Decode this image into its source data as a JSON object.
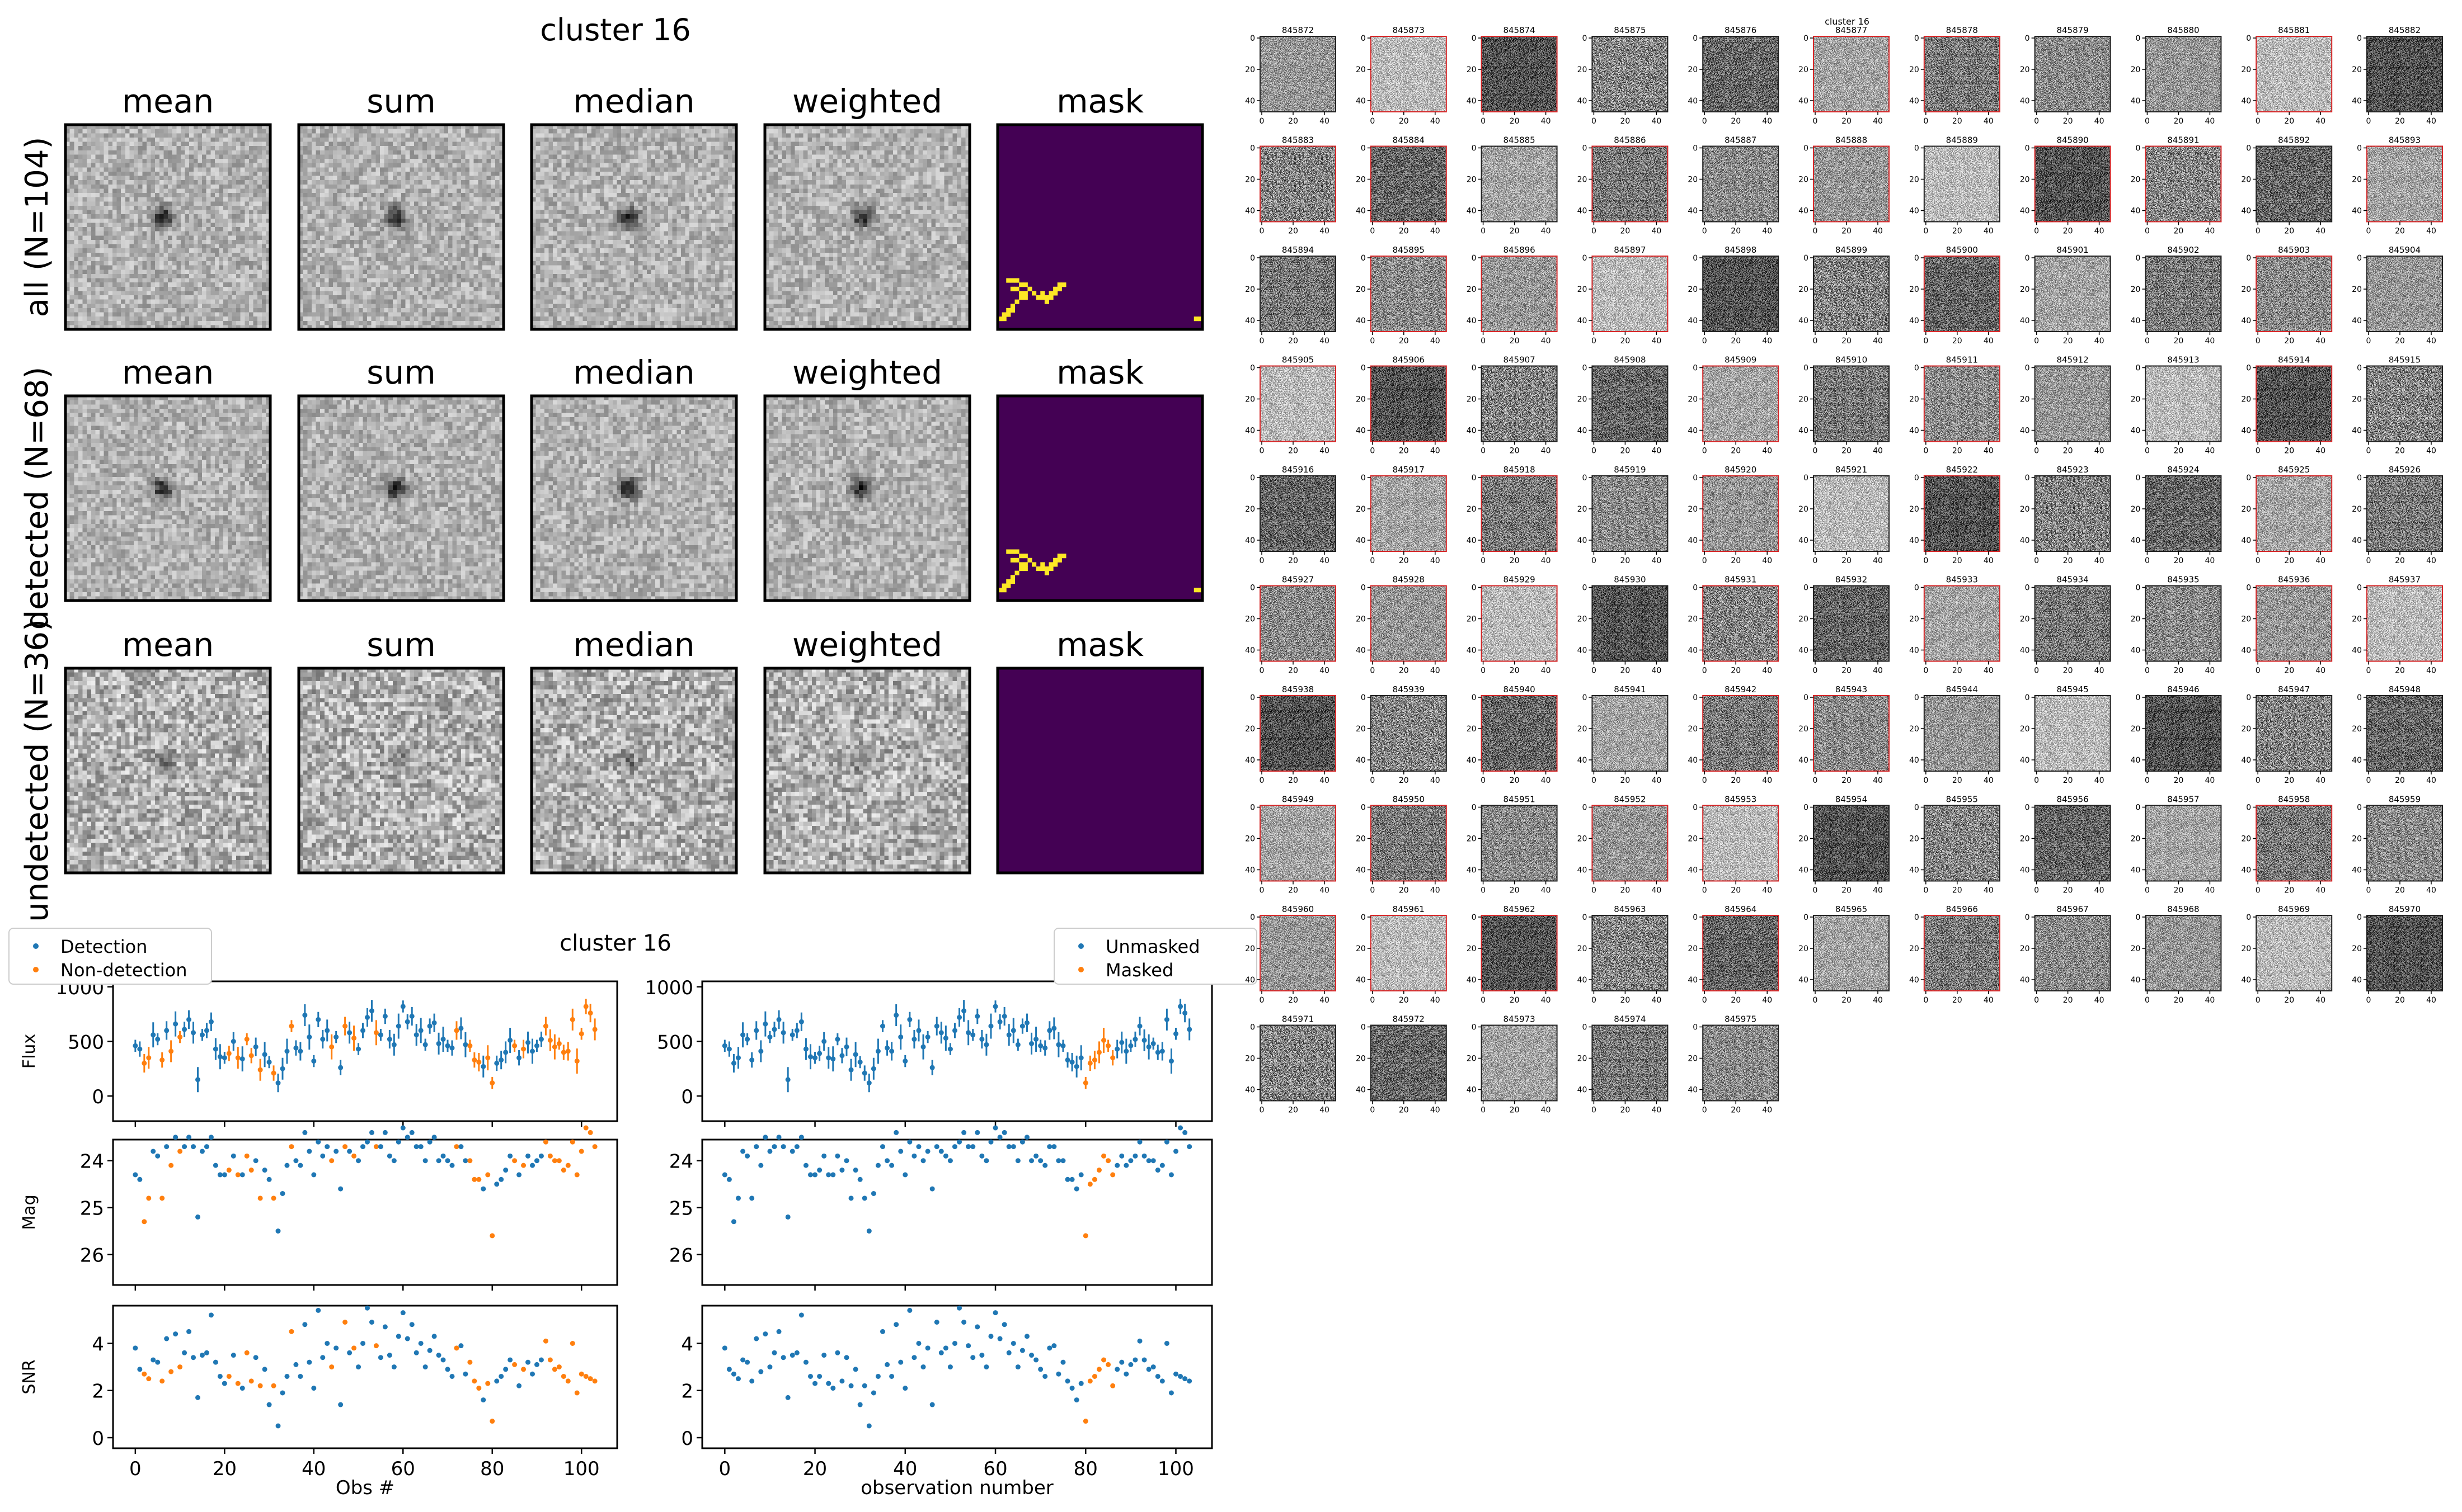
{
  "stack_figure": {
    "title": "cluster 16",
    "column_titles": [
      "mean",
      "sum",
      "median",
      "weighted",
      "mask"
    ],
    "row_labels": [
      "all (N=104)",
      "detected (N=68)",
      "undetected (N=36)"
    ],
    "colors": {
      "mask_background": "#440154",
      "mask_foreground": "#fde725"
    }
  },
  "lightcurve_figure": {
    "title": "cluster 16",
    "left_legend": [
      "Detection",
      "Non-detection"
    ],
    "right_legend": [
      "Unmasked",
      "Masked"
    ],
    "colors": {
      "blue": "#1f77b4",
      "orange": "#ff7f0e"
    },
    "panels": [
      {
        "ylabel": "Flux",
        "yticks": [
          "0",
          "500",
          "1000"
        ],
        "yrange": [
          -230,
          1050
        ]
      },
      {
        "ylabel": "Mag",
        "yticks": [
          "24",
          "25",
          "26"
        ],
        "yrange": [
          26.65,
          23.55
        ]
      },
      {
        "ylabel": "SNR",
        "yticks": [
          "0",
          "2",
          "4"
        ],
        "yrange": [
          -0.45,
          5.6
        ]
      }
    ],
    "xticks": [
      "0",
      "20",
      "40",
      "60",
      "80",
      "100"
    ],
    "xrange": [
      -5,
      108
    ],
    "left_xlabel": "Obs #",
    "right_xlabel": "observation number"
  },
  "cutout_grid": {
    "title": "cluster 16",
    "tile_yticks": [
      "0",
      "20",
      "40"
    ],
    "tile_xticks": [
      "0",
      "20",
      "40"
    ],
    "labels": [
      "845872",
      "845873",
      "845874",
      "845875",
      "845876",
      "845877",
      "845878",
      "845879",
      "845880",
      "845881",
      "845882",
      "845883",
      "845884",
      "845885",
      "845886",
      "845887",
      "845888",
      "845889",
      "845890",
      "845891",
      "845892",
      "845893",
      "845894",
      "845895",
      "845896",
      "845897",
      "845898",
      "845899",
      "845900",
      "845901",
      "845902",
      "845903",
      "845904",
      "845905",
      "845906",
      "845907",
      "845908",
      "845909",
      "845910",
      "845911",
      "845912",
      "845913",
      "845914",
      "845915",
      "845916",
      "845917",
      "845918",
      "845919",
      "845920",
      "845921",
      "845922",
      "845923",
      "845924",
      "845925",
      "845926",
      "845927",
      "845928",
      "845929",
      "845930",
      "845931",
      "845932",
      "845933",
      "845934",
      "845935",
      "845936",
      "845937",
      "845938",
      "845939",
      "845940",
      "845941",
      "845942",
      "845943",
      "845944",
      "845945",
      "845946",
      "845947",
      "845948",
      "845949",
      "845950",
      "845951",
      "845952",
      "845953",
      "845954",
      "845955",
      "845956",
      "845957",
      "845958",
      "845959",
      "845960",
      "845961",
      "845962",
      "845963",
      "845964",
      "845965",
      "845966",
      "845967",
      "845968",
      "845969",
      "845970",
      "845971",
      "845972",
      "845973",
      "845974",
      "845975"
    ],
    "red_border": [
      "845873",
      "845874",
      "845877",
      "845878",
      "845881",
      "845883",
      "845884",
      "845886",
      "845888",
      "845890",
      "845891",
      "845893",
      "845895",
      "845896",
      "845897",
      "845900",
      "845903",
      "845905",
      "845906",
      "845909",
      "845911",
      "845914",
      "845917",
      "845918",
      "845920",
      "845922",
      "845925",
      "845927",
      "845928",
      "845929",
      "845931",
      "845933",
      "845936",
      "845937",
      "845938",
      "845940",
      "845942",
      "845943",
      "845949",
      "845950",
      "845952",
      "845953",
      "845958",
      "845960",
      "845961",
      "845962",
      "845964",
      "845966"
    ],
    "colors": {
      "border_red": "#d62728",
      "border_dark": "#222222"
    }
  },
  "chart_data": {
    "type": "scatter",
    "title": "cluster 16",
    "xlabel": "Obs #",
    "xlim": [
      -5,
      108
    ],
    "detected": [
      0,
      1,
      4,
      5,
      7,
      9,
      11,
      12,
      13,
      14,
      15,
      16,
      17,
      18,
      19,
      20,
      22,
      24,
      27,
      29,
      30,
      32,
      33,
      34,
      36,
      37,
      38,
      39,
      40,
      41,
      42,
      43,
      45,
      46,
      48,
      50,
      51,
      52,
      53,
      55,
      56,
      57,
      58,
      59,
      60,
      61,
      62,
      63,
      64,
      65,
      66,
      67,
      68,
      69,
      70,
      71,
      73,
      74,
      78,
      81,
      82,
      83,
      84,
      86,
      88,
      89,
      90,
      91
    ],
    "series": [
      {
        "name": "Flux",
        "values": [
          460,
          430,
          300,
          350,
          560,
          520,
          330,
          600,
          410,
          660,
          540,
          610,
          700,
          580,
          150,
          560,
          600,
          680,
          430,
          360,
          350,
          390,
          500,
          350,
          340,
          520,
          370,
          450,
          240,
          380,
          310,
          210,
          120,
          250,
          410,
          640,
          440,
          410,
          740,
          540,
          320,
          700,
          520,
          600,
          450,
          540,
          260,
          640,
          580,
          530,
          430,
          600,
          720,
          780,
          580,
          560,
          730,
          520,
          470,
          640,
          820,
          680,
          730,
          560,
          600,
          470,
          640,
          670,
          480,
          520,
          460,
          440,
          600,
          620,
          470,
          460,
          330,
          310,
          270,
          350,
          120,
          300,
          330,
          400,
          510,
          460,
          350,
          430,
          490,
          410,
          460,
          520,
          640,
          510,
          450,
          480,
          400,
          410,
          700,
          320,
          570,
          820,
          760,
          610
        ]
      },
      {
        "name": "Mag",
        "values": [
          24.3,
          24.4,
          25.3,
          24.8,
          23.8,
          23.9,
          24.8,
          23.7,
          24.1,
          23.5,
          23.8,
          23.7,
          23.5,
          23.7,
          25.2,
          23.8,
          23.7,
          23.5,
          24.1,
          24.3,
          24.3,
          24.2,
          23.9,
          24.3,
          24.3,
          23.9,
          24.2,
          24.0,
          24.8,
          24.2,
          24.4,
          24.8,
          25.5,
          24.7,
          24.1,
          23.7,
          24.0,
          24.1,
          23.4,
          23.8,
          24.3,
          23.6,
          23.9,
          23.7,
          24.0,
          23.8,
          24.6,
          23.7,
          23.8,
          23.9,
          24.0,
          23.7,
          23.6,
          23.4,
          23.7,
          23.7,
          23.4,
          23.9,
          24.0,
          23.6,
          23.3,
          23.5,
          23.4,
          23.7,
          23.7,
          24.0,
          23.6,
          23.5,
          24.0,
          23.9,
          24.0,
          24.1,
          23.7,
          23.7,
          24.0,
          24.0,
          24.4,
          24.4,
          24.6,
          24.3,
          25.6,
          24.5,
          24.4,
          24.2,
          23.9,
          24.0,
          24.3,
          24.1,
          23.9,
          24.1,
          24.0,
          23.9,
          23.6,
          23.9,
          24.0,
          24.0,
          24.2,
          24.1,
          23.6,
          24.3,
          23.8,
          23.3,
          23.4,
          23.7
        ]
      },
      {
        "name": "SNR",
        "values": [
          3.8,
          2.9,
          2.7,
          2.5,
          3.3,
          3.2,
          2.4,
          4.2,
          2.8,
          4.4,
          3.0,
          3.6,
          4.5,
          3.4,
          1.7,
          3.5,
          3.6,
          5.2,
          3.2,
          2.6,
          2.3,
          2.6,
          3.5,
          2.3,
          2.1,
          3.6,
          2.4,
          3.4,
          2.2,
          2.9,
          1.4,
          2.2,
          0.5,
          1.9,
          2.6,
          4.5,
          3.1,
          2.6,
          4.8,
          3.2,
          2.1,
          5.4,
          3.4,
          4.0,
          3.0,
          3.8,
          1.4,
          4.9,
          3.6,
          3.8,
          3.0,
          4.0,
          5.5,
          4.9,
          3.9,
          3.4,
          4.7,
          3.5,
          3.0,
          4.3,
          5.3,
          4.2,
          4.8,
          3.6,
          4.0,
          3.0,
          3.7,
          4.3,
          3.5,
          3.3,
          2.9,
          2.6,
          3.8,
          3.9,
          2.7,
          3.2,
          2.4,
          2.1,
          1.6,
          2.3,
          0.7,
          2.4,
          2.6,
          2.9,
          3.3,
          3.1,
          2.2,
          2.9,
          3.2,
          2.7,
          3.1,
          3.3,
          4.1,
          3.3,
          2.9,
          3.0,
          2.6,
          2.4,
          4.0,
          1.9,
          2.7,
          2.6,
          2.5,
          2.4
        ]
      }
    ]
  }
}
